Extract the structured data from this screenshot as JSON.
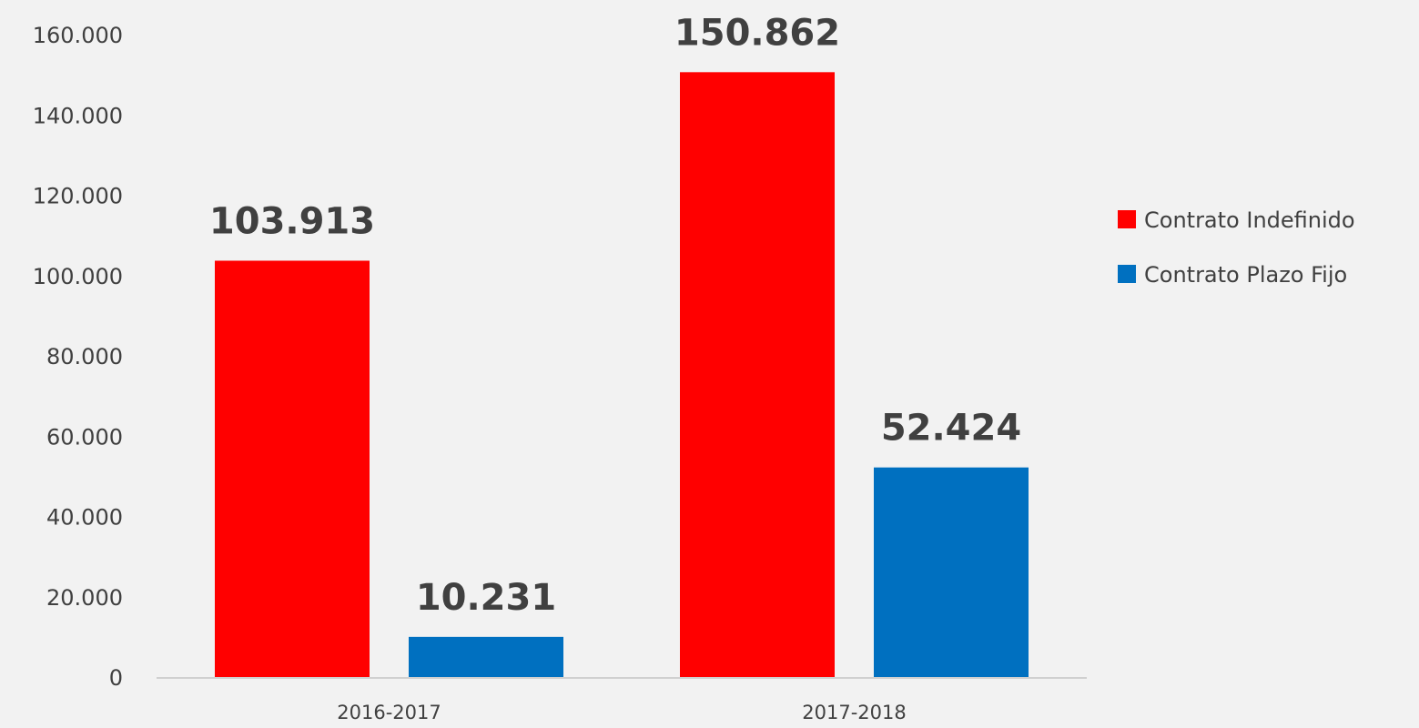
{
  "chart_data": {
    "type": "bar",
    "title": "",
    "xlabel": "",
    "ylabel": "",
    "categories": [
      "2016-2017",
      "2017-2018"
    ],
    "series": [
      {
        "name": "Contrato Indefinido",
        "color": "#ff0000",
        "values": [
          103913,
          150862
        ],
        "labels": [
          "103.913",
          "150.862"
        ]
      },
      {
        "name": "Contrato Plazo Fijo",
        "color": "#0070c0",
        "values": [
          10231,
          52424
        ],
        "labels": [
          "10.231",
          "52.424"
        ]
      }
    ],
    "ylim": [
      0,
      160000
    ],
    "y_ticks": [
      0,
      20000,
      40000,
      60000,
      80000,
      100000,
      120000,
      140000,
      160000
    ],
    "y_tick_labels": [
      "0",
      "20.000",
      "40.000",
      "60.000",
      "80.000",
      "100.000",
      "120.000",
      "140.000",
      "160.000"
    ],
    "grid": false,
    "legend_position": "right"
  }
}
